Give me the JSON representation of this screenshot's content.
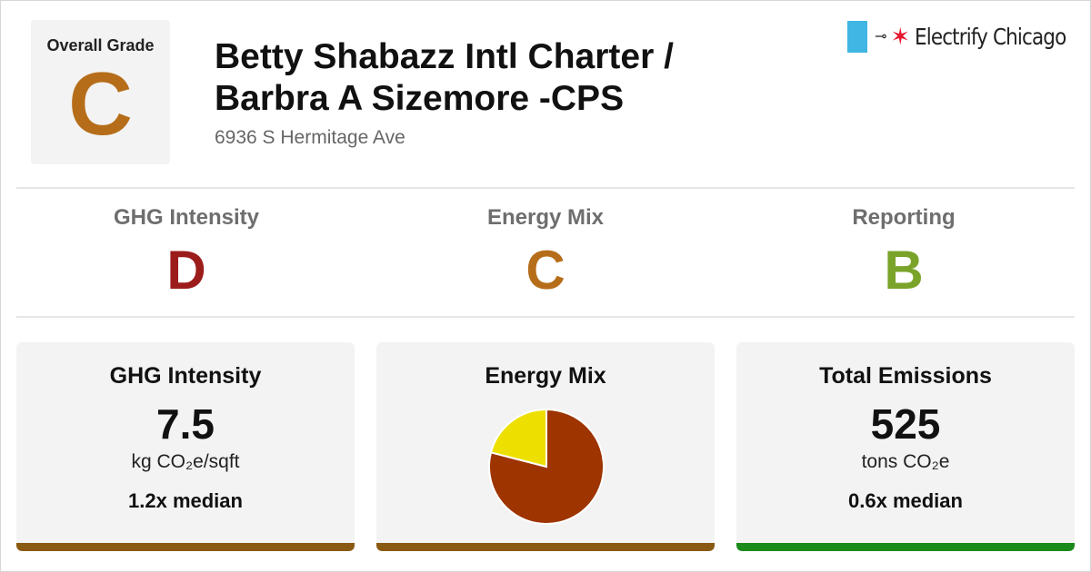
{
  "overall": {
    "label": "Overall Grade",
    "grade": "C"
  },
  "building": {
    "title_line1": "Betty Shabazz Intl Charter /",
    "title_line2": "Barbra A Sizemore -CPS",
    "address": "6936 S Hermitage Ave"
  },
  "brand": {
    "name": "Electrify Chicago",
    "plug_icon": "plug-icon",
    "star_icon": "star-icon"
  },
  "subgrades": [
    {
      "name": "GHG Intensity",
      "grade": "D",
      "color": "#9c1c1c"
    },
    {
      "name": "Energy Mix",
      "grade": "C",
      "color": "#b66d19"
    },
    {
      "name": "Reporting",
      "grade": "B",
      "color": "#7aa32a"
    }
  ],
  "cards": {
    "ghg": {
      "title": "GHG Intensity",
      "value": "7.5",
      "unit": "kg CO₂e/sqft",
      "median": "1.2x median",
      "bar_color": "#8a5a12"
    },
    "mix": {
      "title": "Energy Mix",
      "bar_color": "#8a5a12"
    },
    "total": {
      "title": "Total Emissions",
      "value": "525",
      "unit": "tons CO₂e",
      "median": "0.6x median",
      "bar_color": "#1a8a1a"
    }
  },
  "chart_data": {
    "type": "pie",
    "values": [
      0.79,
      0.21
    ],
    "colors": [
      "#9e3400",
      "#ede000"
    ]
  }
}
